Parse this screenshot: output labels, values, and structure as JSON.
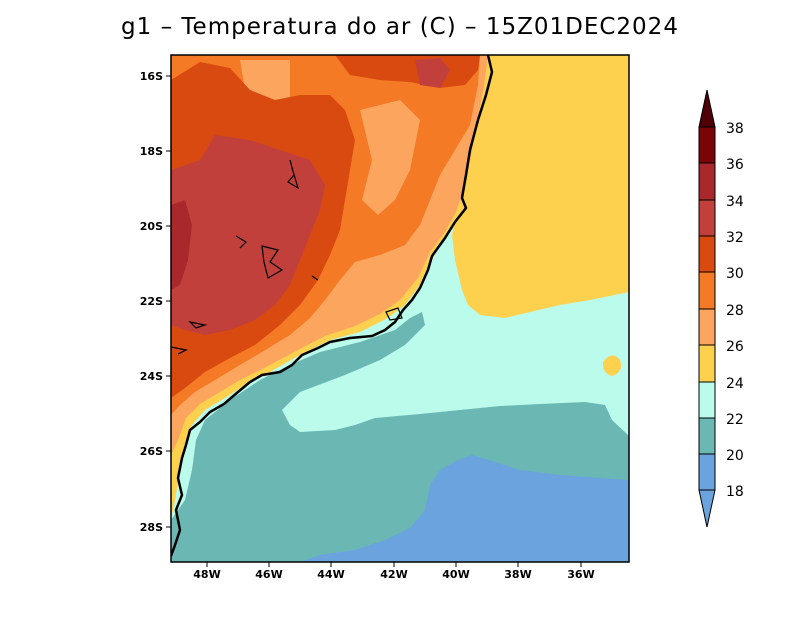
{
  "title": "g1 – Temperatura do ar (C) – 15Z01DEC2024",
  "map": {
    "x_axis_labels": [
      "48W",
      "46W",
      "44W",
      "42W",
      "40W",
      "38W",
      "36W"
    ],
    "y_axis_labels": [
      "16S",
      "18S",
      "20S",
      "22S",
      "24S",
      "26S",
      "28S"
    ]
  },
  "colorbar": {
    "labels": [
      "18",
      "20",
      "22",
      "24",
      "26",
      "28",
      "30",
      "32",
      "34",
      "36",
      "38"
    ],
    "levels": [
      {
        "color": "#6aa3dd",
        "range": "<18"
      },
      {
        "color": "#6aa3dd",
        "range": "18-20"
      },
      {
        "color": "#6bb7b4",
        "range": "20-22"
      },
      {
        "color": "#bbfbec",
        "range": "22-24"
      },
      {
        "color": "#fdd14e",
        "range": "24-26"
      },
      {
        "color": "#fca55e",
        "range": "26-28"
      },
      {
        "color": "#f57a25",
        "range": "28-30"
      },
      {
        "color": "#d94a10",
        "range": "30-32"
      },
      {
        "color": "#c2403c",
        "range": "32-34"
      },
      {
        "color": "#a8282c",
        "range": "34-36"
      },
      {
        "color": "#7a0508",
        "range": "36-38"
      },
      {
        "color": "#4e0006",
        "range": ">38"
      }
    ]
  }
}
